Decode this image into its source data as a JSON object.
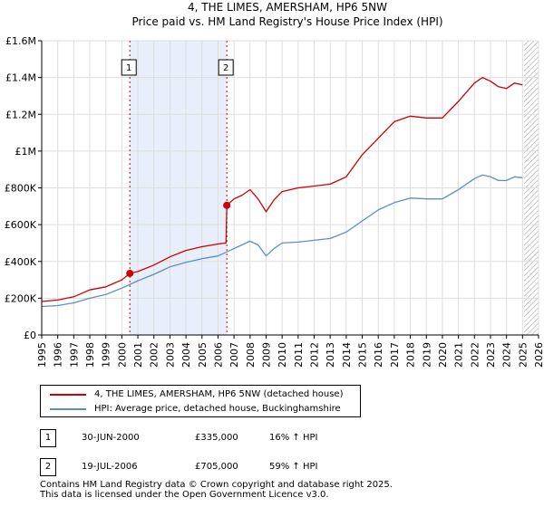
{
  "chart_data": {
    "type": "line",
    "title": "4, THE LIMES, AMERSHAM, HP6 5NW",
    "subtitle": "Price paid vs. HM Land Registry's House Price Index (HPI)",
    "xlim": [
      1995,
      2026
    ],
    "ylim": [
      0,
      1600000
    ],
    "x_ticks": [
      1995,
      1996,
      1997,
      1998,
      1999,
      2000,
      2001,
      2002,
      2003,
      2004,
      2005,
      2006,
      2007,
      2008,
      2009,
      2010,
      2011,
      2012,
      2013,
      2014,
      2015,
      2016,
      2017,
      2018,
      2019,
      2020,
      2021,
      2022,
      2023,
      2024,
      2025,
      2026
    ],
    "y_ticks": [
      {
        "value": 0,
        "label": "£0"
      },
      {
        "value": 200000,
        "label": "£200K"
      },
      {
        "value": 400000,
        "label": "£400K"
      },
      {
        "value": 600000,
        "label": "£600K"
      },
      {
        "value": 800000,
        "label": "£800K"
      },
      {
        "value": 1000000,
        "label": "£1M"
      },
      {
        "value": 1200000,
        "label": "£1.2M"
      },
      {
        "value": 1400000,
        "label": "£1.4M"
      },
      {
        "value": 1600000,
        "label": "£1.6M"
      }
    ],
    "grid": true,
    "shaded_ranges": [
      {
        "from": 2000.5,
        "to": 2006.55
      }
    ],
    "hatched_from": 2025.1,
    "series": [
      {
        "name": "4, THE LIMES, AMERSHAM, HP6 5NW (detached house)",
        "color": "#cc0000",
        "x": [
          1995.0,
          1996.0,
          1997.0,
          1998.0,
          1999.0,
          2000.0,
          2000.5,
          2001.0,
          2002.0,
          2003.0,
          2004.0,
          2005.0,
          2006.0,
          2006.5,
          2006.55,
          2007.0,
          2007.5,
          2008.0,
          2008.5,
          2009.0,
          2009.5,
          2010.0,
          2011.0,
          2012.0,
          2013.0,
          2014.0,
          2015.0,
          2016.0,
          2017.0,
          2018.0,
          2019.0,
          2020.0,
          2021.0,
          2022.0,
          2022.5,
          2023.0,
          2023.5,
          2024.0,
          2024.5,
          2025.0
        ],
        "y": [
          182000,
          190000,
          208000,
          245000,
          262000,
          300000,
          335000,
          345000,
          380000,
          425000,
          460000,
          480000,
          495000,
          500000,
          705000,
          740000,
          760000,
          790000,
          740000,
          670000,
          735000,
          780000,
          800000,
          810000,
          820000,
          860000,
          980000,
          1070000,
          1160000,
          1190000,
          1180000,
          1180000,
          1270000,
          1370000,
          1400000,
          1380000,
          1350000,
          1340000,
          1370000,
          1360000
        ]
      },
      {
        "name": "HPI: Average price, detached house, Buckinghamshire",
        "color": "#5b8ec8",
        "x": [
          1995.0,
          1996.0,
          1997.0,
          1998.0,
          1999.0,
          2000.0,
          2001.0,
          2002.0,
          2003.0,
          2004.0,
          2005.0,
          2006.0,
          2007.0,
          2008.0,
          2008.5,
          2009.0,
          2009.5,
          2010.0,
          2011.0,
          2012.0,
          2013.0,
          2014.0,
          2015.0,
          2016.0,
          2017.0,
          2018.0,
          2019.0,
          2020.0,
          2021.0,
          2022.0,
          2022.5,
          2023.0,
          2023.5,
          2024.0,
          2024.5,
          2025.0
        ],
        "y": [
          155000,
          160000,
          175000,
          200000,
          220000,
          255000,
          295000,
          330000,
          370000,
          395000,
          415000,
          430000,
          470000,
          510000,
          490000,
          430000,
          470000,
          500000,
          505000,
          515000,
          525000,
          560000,
          620000,
          680000,
          720000,
          745000,
          740000,
          740000,
          790000,
          850000,
          870000,
          860000,
          840000,
          840000,
          860000,
          855000
        ]
      }
    ],
    "sales": [
      {
        "id": "1",
        "x": 2000.5,
        "y": 335000
      },
      {
        "id": "2",
        "x": 2006.55,
        "y": 705000
      }
    ]
  },
  "legend": {
    "property_label": "4, THE LIMES, AMERSHAM, HP6 5NW (detached house)",
    "hpi_label": "HPI: Average price, detached house, Buckinghamshire",
    "property_color": "#cc0000",
    "hpi_color": "#5b8ec8"
  },
  "sales_table": [
    {
      "badge": "1",
      "date": "30-JUN-2000",
      "price": "£335,000",
      "hpi_change": "16% ↑ HPI"
    },
    {
      "badge": "2",
      "date": "19-JUL-2006",
      "price": "£705,000",
      "hpi_change": "59% ↑ HPI"
    }
  ],
  "footer": {
    "line1": "Contains HM Land Registry data © Crown copyright and database right 2025.",
    "line2": "This data is licensed under the Open Government Licence v3.0."
  }
}
